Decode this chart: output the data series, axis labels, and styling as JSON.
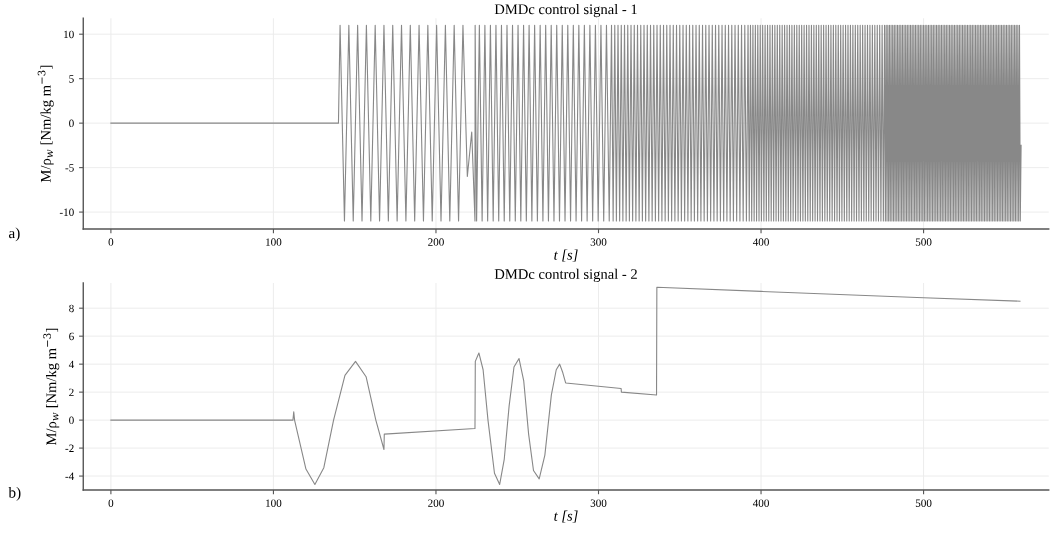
{
  "chart_data": [
    {
      "type": "line",
      "title": "DMDc control signal - 1",
      "xlabel": "t [s]",
      "ylabel": "M/ρ$_{w}$ [Nm/kg m$^{−3}$]",
      "annotations": [
        "a)"
      ],
      "grid": true,
      "xlim": [
        -17,
        577
      ],
      "ylim": [
        -11.9,
        11.8
      ],
      "xticks": [
        0,
        100,
        200,
        300,
        400,
        500
      ],
      "yticks": [
        -10,
        -5,
        0,
        5,
        10
      ],
      "x": [
        0,
        140,
        141.0,
        143.7,
        146.4,
        149.1,
        151.8,
        154.5,
        157.2,
        159.9,
        162.6,
        165.3,
        168.0,
        170.7,
        173.4,
        176.1,
        178.8,
        181.5,
        184.2,
        186.9,
        189.6,
        192.3,
        195.0,
        197.7,
        200.4,
        203.1,
        205.8,
        208.5,
        211.2,
        213.9,
        216.6,
        219.3,
        222.0,
        224.0,
        224.1,
        225.0,
        226.7,
        228.4,
        230.1,
        231.8,
        233.5,
        235.2,
        236.9,
        238.6,
        240.3,
        242.0,
        243.7,
        245.4,
        247.1,
        248.8,
        250.5,
        252.2,
        253.9,
        255.6,
        257.3,
        259.0,
        260.7,
        262.4,
        264.1,
        265.8,
        267.5,
        269.2,
        270.9,
        272.6,
        274.3,
        276.0,
        277.7,
        279.4,
        281.1,
        282.8,
        284.5,
        286.2,
        287.9,
        289.6,
        291.3,
        293.0,
        294.7,
        296.4,
        298.1,
        299.8,
        301.5,
        303.2,
        304.9,
        306.6,
        308,
        309,
        310,
        311,
        312,
        313,
        314,
        315,
        316,
        317,
        318,
        319,
        320,
        321,
        322,
        323,
        324,
        325,
        326,
        327,
        328,
        329,
        330,
        331,
        332,
        333,
        334,
        335,
        336,
        337,
        338,
        339,
        340,
        341,
        342,
        343,
        344,
        345,
        346,
        347,
        348,
        349,
        350,
        351,
        352,
        353,
        354,
        355,
        356,
        357,
        358,
        359,
        360,
        361,
        362,
        363,
        364,
        365,
        366,
        367,
        368,
        369,
        370,
        371,
        372,
        373,
        374,
        375,
        376,
        377,
        378,
        379,
        380,
        381,
        382,
        383,
        384,
        385,
        386,
        387,
        388,
        389,
        390,
        391,
        392,
        392.75,
        393.5,
        394.25,
        395,
        395.75,
        396.5,
        397.25,
        398,
        398.75,
        399.5,
        400.25,
        401,
        401.75,
        402.5,
        403.25,
        404,
        404.75,
        405.5,
        406.25,
        407,
        407.75,
        408.5,
        409.25,
        410,
        410.75,
        411.5,
        412.25,
        413,
        413.75,
        414.5,
        415.25,
        416,
        416.75,
        417.5,
        418.25,
        419,
        419.75,
        420.5,
        421.25,
        422,
        422.75,
        423.5,
        424.25,
        425,
        425.75,
        426.5,
        427.25,
        428,
        428.75,
        429.5,
        430.25,
        431,
        431.75,
        432.5,
        433.25,
        434,
        434.75,
        435.5,
        436.25,
        437,
        437.75,
        438.5,
        439.25,
        440,
        440.75,
        441.5,
        442.25,
        443,
        443.75,
        444.5,
        445.25,
        446,
        446.75,
        447.5,
        448.25,
        449,
        449.75,
        450.5,
        451.25,
        452,
        452.75,
        453.5,
        454.25,
        455,
        455.75,
        456.5,
        457.25,
        458,
        458.75,
        459.5,
        460.25,
        461,
        461.75,
        462.5,
        463.25,
        464,
        464.75,
        465.5,
        466.25,
        467,
        467.75,
        468.5,
        469.25,
        470,
        470.75,
        471.5,
        472.25,
        473,
        473.75,
        474.5,
        475.25,
        476,
        476.5,
        477,
        477.5,
        478,
        478.5,
        479,
        479.5,
        480,
        480.5,
        481,
        481.5,
        482,
        482.5,
        483,
        483.5,
        484,
        484.5,
        485,
        485.5,
        486,
        486.5,
        487,
        487.5,
        488,
        488.5,
        489,
        489.5,
        490,
        490.5,
        491,
        491.5,
        492,
        492.5,
        493,
        493.5,
        494,
        494.5,
        495,
        495.5,
        496,
        496.5,
        497,
        497.5,
        498,
        498.5,
        499,
        499.5,
        500,
        500.5,
        501,
        501.5,
        502,
        502.5,
        503,
        503.5,
        504,
        504.5,
        505,
        505.5,
        506,
        506.5,
        507,
        507.5,
        508,
        508.5,
        509,
        509.5,
        510,
        510.5,
        511,
        511.5,
        512,
        512.5,
        513,
        513.5,
        514,
        514.5,
        515,
        515.5,
        516,
        516.5,
        517,
        517.5,
        518,
        518.5,
        519,
        519.5,
        520,
        520.5,
        521,
        521.5,
        522,
        522.5,
        523,
        523.5,
        524,
        524.5,
        525,
        525.5,
        526,
        526.5,
        527,
        527.5,
        528,
        528.5,
        529,
        529.5,
        530,
        530.5,
        531,
        531.5,
        532,
        532.5,
        533,
        533.5,
        534,
        534.5,
        535,
        535.5,
        536,
        536.5,
        537,
        537.5,
        538,
        538.5,
        539,
        539.5,
        540,
        540.5,
        541,
        541.5,
        542,
        542.5,
        543,
        543.5,
        544,
        544.5,
        545,
        545.5,
        546,
        546.5,
        547,
        547.5,
        548,
        548.5,
        549,
        549.5,
        550,
        550.5,
        551,
        551.5,
        552,
        552.5,
        553,
        553.5,
        554,
        554.5,
        555,
        555.5,
        556,
        556.5,
        557,
        557.5,
        558,
        558.5,
        559,
        559.5,
        560
      ],
      "series": [
        {
          "color": "#888888",
          "values": [
            0,
            0,
            11,
            -11,
            11,
            -11,
            11,
            -11,
            11,
            -11,
            11,
            -11,
            11,
            -11,
            11,
            -11,
            11,
            -11,
            11,
            -11,
            11,
            -11,
            11,
            -11,
            11,
            -11,
            11,
            -11,
            11,
            -11,
            11,
            -6,
            -1,
            -11,
            11,
            -11,
            11,
            -11,
            11,
            -11,
            11,
            -11,
            11,
            -11,
            11,
            -11,
            11,
            -11,
            11,
            -11,
            11,
            -11,
            11,
            -11,
            11,
            -11,
            11,
            -11,
            11,
            -11,
            11,
            -11,
            11,
            -11,
            11,
            -11,
            11,
            -11,
            11,
            -11,
            11,
            -11,
            11,
            -11,
            11,
            -11,
            11,
            -11,
            11,
            -11,
            11,
            -11,
            11,
            -11,
            11,
            -11,
            11,
            -11,
            11,
            -11,
            11,
            -11,
            11,
            -11,
            11,
            -11,
            11,
            -11,
            11,
            -11,
            11,
            -11,
            11,
            -11,
            11,
            -11,
            11,
            -11,
            11,
            -11,
            11,
            -11,
            11,
            -11,
            11,
            -11,
            11,
            -11,
            11,
            -11,
            11,
            -11,
            11,
            -11,
            11,
            -11,
            11,
            -11,
            11,
            -11,
            11,
            -11,
            11,
            -11,
            11,
            -11,
            11,
            -11,
            11,
            -11,
            11,
            -11,
            11,
            -11,
            11,
            -11,
            11,
            -11,
            11,
            -11,
            11,
            -11,
            11,
            -11,
            11,
            -11,
            11,
            -11,
            11,
            -11,
            11,
            -11,
            11,
            -11,
            11,
            -11,
            11,
            -11,
            11,
            -11,
            11,
            -11,
            11,
            -11,
            11,
            -11,
            11,
            -11,
            11,
            -11,
            11,
            -11,
            11,
            -11,
            11,
            -11,
            11,
            -11,
            11,
            -11,
            11,
            -11,
            11,
            -11,
            11,
            -11,
            11,
            -11,
            11,
            -11,
            11,
            -11,
            11,
            -11,
            11,
            -11,
            11,
            -11,
            11,
            -11,
            11,
            -11,
            11,
            -11,
            11,
            -11,
            11,
            -11,
            11,
            -11,
            11,
            -11,
            11,
            -11,
            11,
            -11,
            11,
            -11,
            11,
            -11,
            11,
            -11,
            11,
            -11,
            11,
            -11,
            11,
            -11,
            11,
            -11,
            11,
            -11,
            11,
            -11,
            11,
            -11,
            11,
            -11,
            11,
            -11,
            11,
            -11,
            11,
            -11,
            11,
            -11,
            11,
            -11,
            11,
            -11,
            11,
            -11,
            11,
            -11,
            11,
            -11,
            11,
            -11,
            11,
            -11,
            11,
            -11,
            11,
            -11,
            11,
            -11,
            11,
            -11,
            11,
            -11,
            11,
            -11,
            11,
            -11,
            11,
            -11,
            11,
            -11,
            11,
            -11,
            11,
            -11,
            11,
            -11,
            11,
            -11,
            11,
            -11,
            11,
            -11,
            11,
            -11,
            11,
            -11,
            11,
            -11,
            11,
            -11,
            11,
            -11,
            11,
            -11,
            11,
            -11,
            11,
            -11,
            11,
            -11,
            11,
            -11,
            11,
            -11,
            11,
            -11,
            11,
            -11,
            11,
            -11,
            11,
            -11,
            11,
            -11,
            11,
            -11,
            11,
            -11,
            11,
            -11,
            11,
            -11,
            11,
            -11,
            11,
            -11,
            11,
            -11,
            11,
            -11,
            11,
            -11,
            11,
            -11,
            11,
            -11,
            11,
            -11,
            11,
            -11,
            11,
            -11,
            11,
            -11,
            11,
            -11,
            11,
            -11,
            11,
            -11,
            11,
            -11,
            11,
            -11,
            11,
            -11,
            11,
            -11,
            11,
            -11,
            11,
            -11,
            11,
            -11,
            11,
            -11,
            11,
            -11,
            11,
            -11,
            11,
            -11,
            11,
            -11,
            11,
            -11,
            11,
            -11,
            11,
            -11,
            11,
            -11,
            11,
            -11,
            11,
            -11,
            11,
            -11,
            11,
            -11,
            11,
            -11,
            11,
            -11,
            11,
            -11,
            11,
            -11,
            11,
            -11,
            11,
            -11,
            11,
            -11,
            11,
            -11,
            11,
            -11,
            11,
            -11,
            11,
            -11,
            11,
            -11,
            11,
            -11,
            11,
            -11,
            11,
            -11,
            11,
            -11,
            11,
            -11,
            11,
            -11,
            11,
            -11,
            11,
            -11,
            -2.5
          ]
        }
      ]
    },
    {
      "type": "line",
      "title": "DMDc control signal - 2",
      "xlabel": "t [s]",
      "ylabel": "M/ρ$_{w}$ [Nm/kg m$^{−3}$]",
      "annotations": [
        "b)"
      ],
      "grid": true,
      "xlim": [
        -17,
        577
      ],
      "ylim": [
        -5.0,
        9.8
      ],
      "xticks": [
        0,
        100,
        200,
        300,
        400,
        500
      ],
      "yticks": [
        -4,
        -2,
        0,
        2,
        4,
        6,
        8
      ],
      "x": [
        0,
        112,
        112.5,
        113,
        116,
        120,
        125.5,
        131,
        137,
        144,
        150.5,
        157,
        163,
        168,
        168.2,
        224,
        224.2,
        226.4,
        229,
        232,
        236,
        239.2,
        242,
        245,
        248,
        251.1,
        254,
        257,
        260,
        263.5,
        267,
        271,
        274,
        276.1,
        278,
        279.7,
        279.9,
        313.9,
        314.1,
        335.7,
        335.9,
        400,
        500,
        559.3
      ],
      "series": [
        {
          "color": "#888888",
          "values": [
            0,
            0,
            0.6,
            0,
            -1.5,
            -3.5,
            -4.6,
            -3.4,
            0,
            3.2,
            4.2,
            3.1,
            0,
            -2.1,
            -1.0,
            -0.6,
            4.2,
            4.8,
            3.6,
            0,
            -3.8,
            -4.6,
            -2.8,
            1.0,
            3.8,
            4.4,
            2.8,
            -1.0,
            -3.6,
            -4.2,
            -2.5,
            1.8,
            3.6,
            4.0,
            3.4,
            2.7,
            2.65,
            2.26,
            2.0,
            1.8,
            9.5,
            9.2,
            8.75,
            8.5
          ]
        }
      ]
    }
  ]
}
